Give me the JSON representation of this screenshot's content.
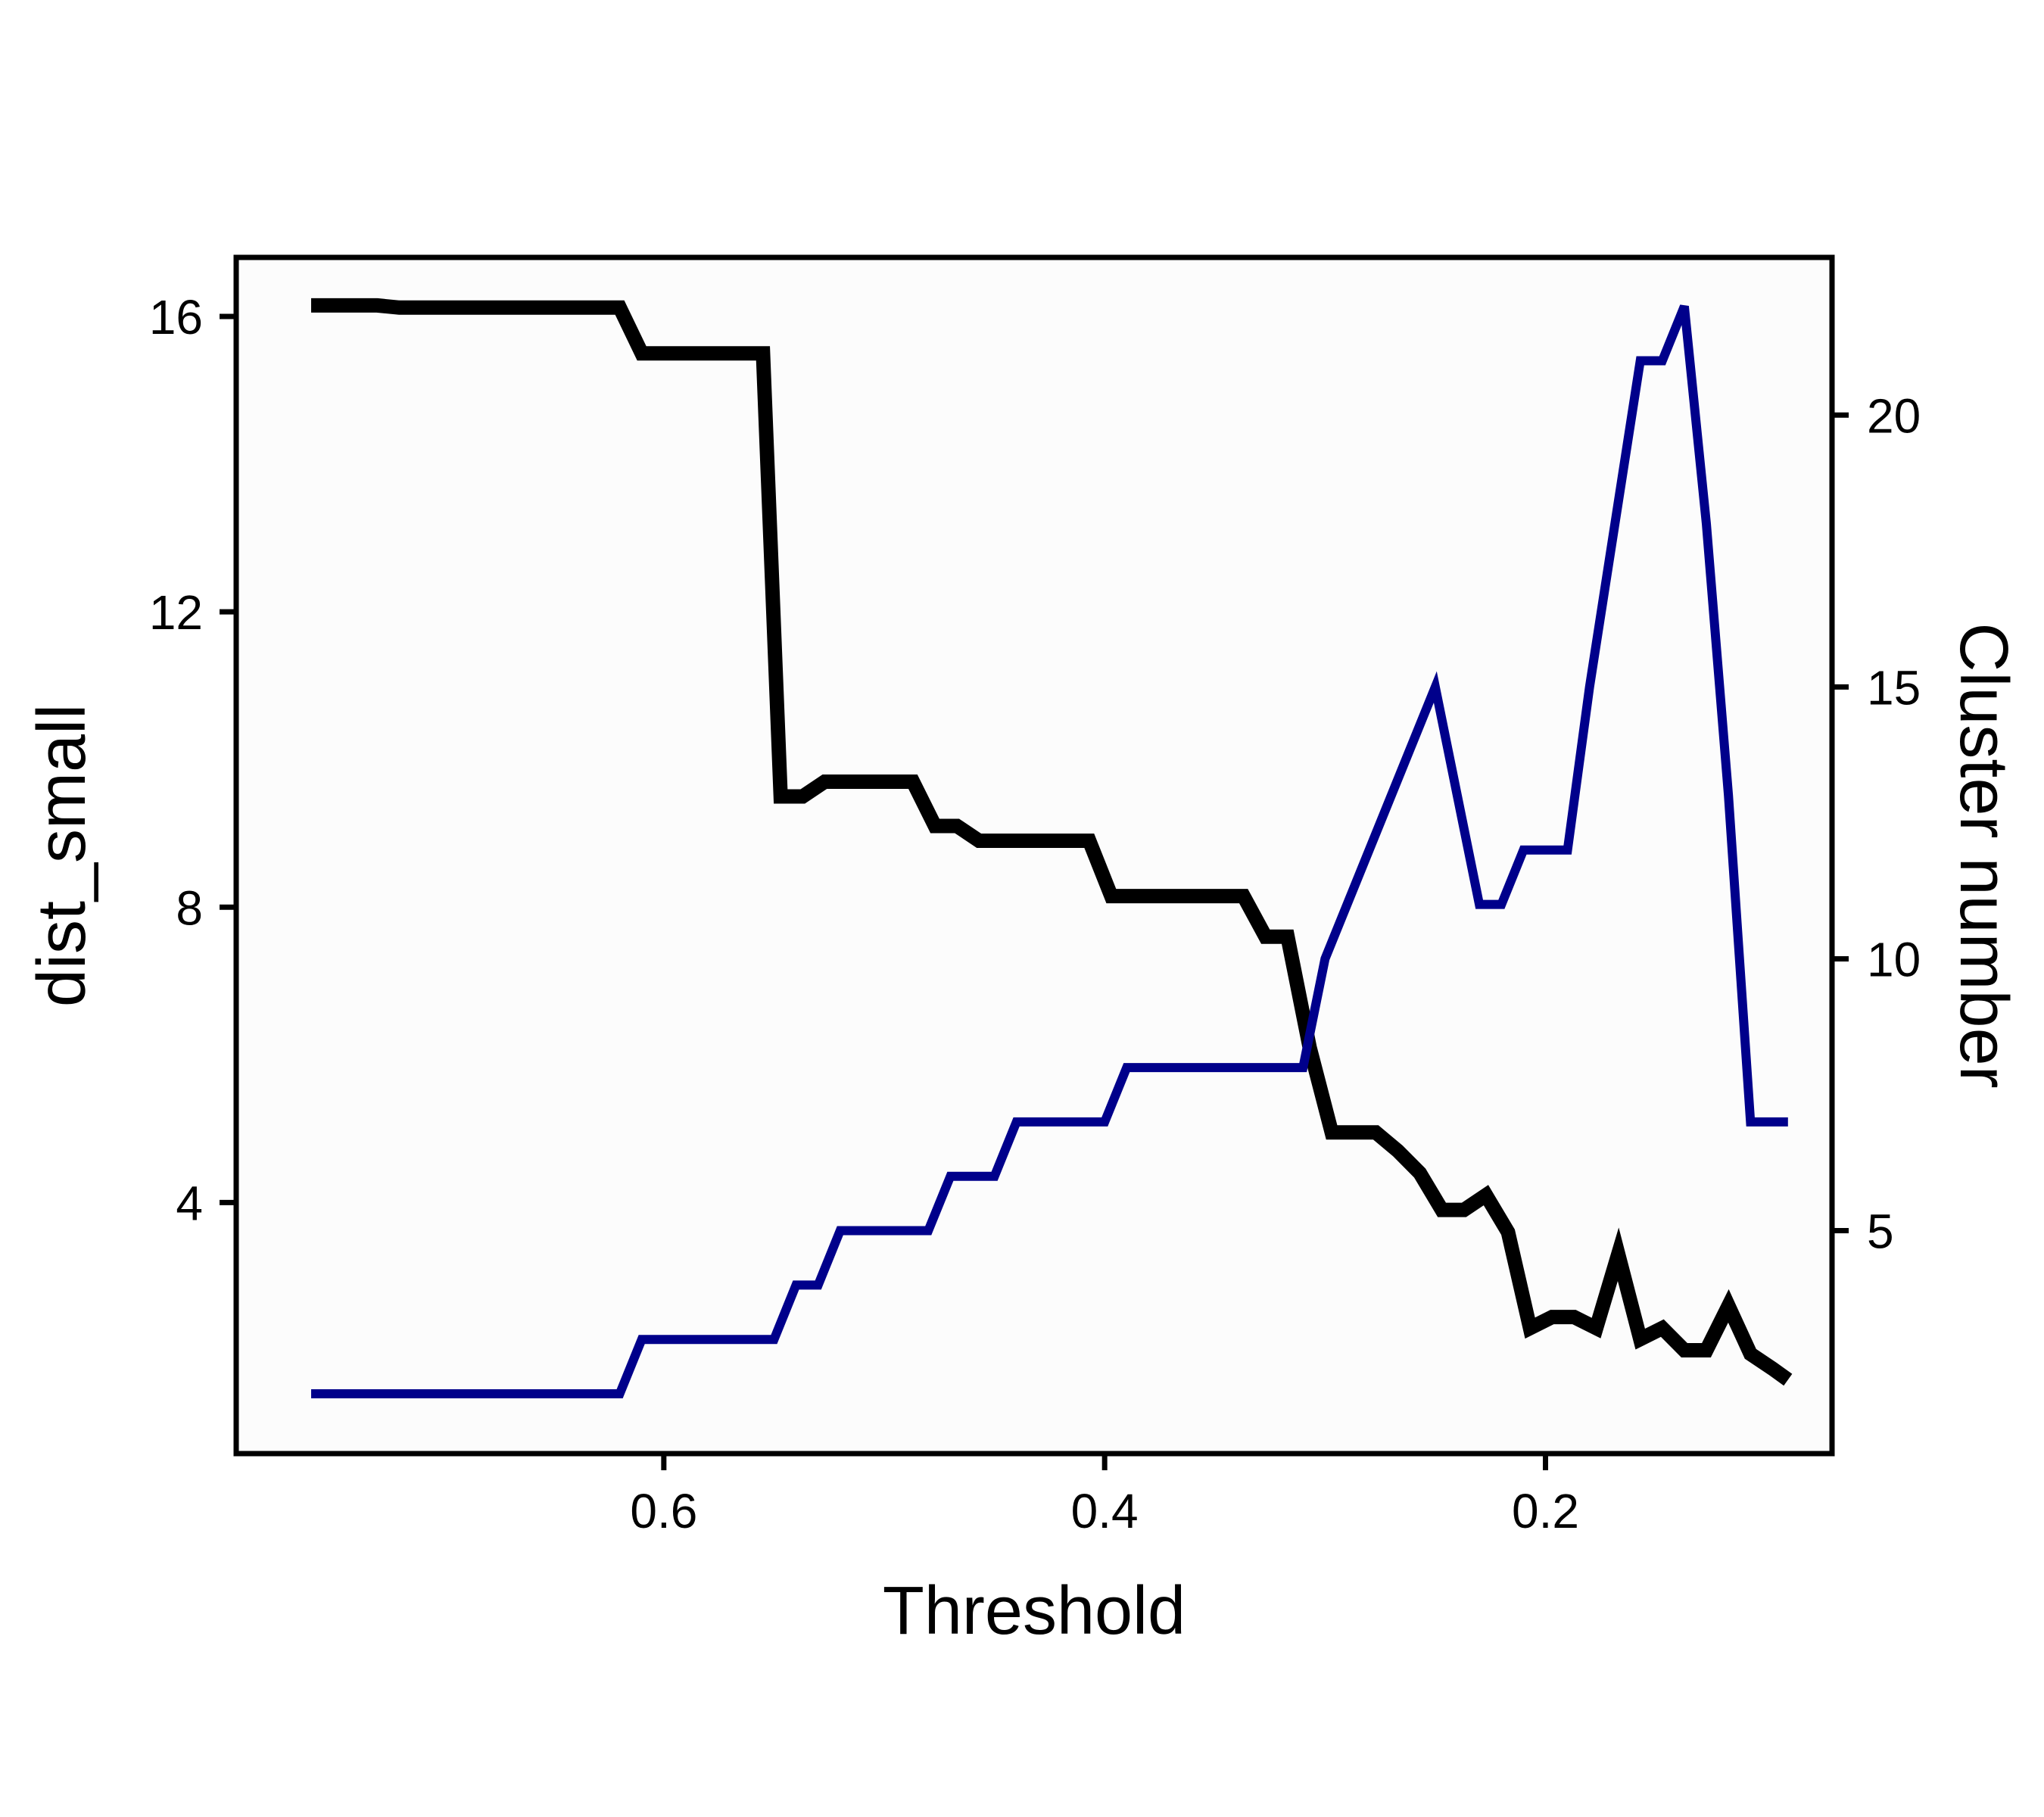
{
  "chart_data": {
    "type": "line",
    "xlabel": "Threshold",
    "ylabel_left": "dist_small",
    "ylabel_right": "Cluster number",
    "x_reversed": true,
    "xlim": [
      0.794,
      0.07
    ],
    "x_ticks": [
      0.6,
      0.4,
      0.2
    ],
    "x_tick_labels": [
      "0.6",
      "0.4",
      "0.2"
    ],
    "ylim_left": [
      0.6,
      16.8
    ],
    "y_left_ticks": [
      4,
      8,
      12,
      16
    ],
    "y_left_tick_labels": [
      "4",
      "8",
      "12",
      "16"
    ],
    "ylim_right": [
      0.9,
      22.9
    ],
    "y_right_ticks": [
      5,
      10,
      15,
      20
    ],
    "y_right_tick_labels": [
      "5",
      "10",
      "15",
      "20"
    ],
    "grid": false,
    "plot_background": "#fcfcfc",
    "series": [
      {
        "name": "dist_small",
        "axis": "left",
        "color": "#000000",
        "x": [
          0.76,
          0.73,
          0.72,
          0.62,
          0.61,
          0.55,
          0.54,
          0.53,
          0.52,
          0.49,
          0.48,
          0.47,
          0.46,
          0.45,
          0.44,
          0.43,
          0.42,
          0.41,
          0.4,
          0.39,
          0.38,
          0.33,
          0.32,
          0.31,
          0.3,
          0.29,
          0.28,
          0.27,
          0.26,
          0.25,
          0.24,
          0.23,
          0.22,
          0.21,
          0.2,
          0.19,
          0.18,
          0.17,
          0.16,
          0.15,
          0.14,
          0.13,
          0.12,
          0.11,
          0.1,
          0.09
        ],
        "y": [
          16.15,
          16.15,
          16.12,
          16.12,
          15.5,
          15.5,
          9.5,
          9.5,
          9.7,
          9.7,
          9.1,
          9.1,
          8.9,
          8.9,
          8.9,
          8.9,
          8.9,
          8.15,
          8.15,
          8.15,
          8.15,
          7.6,
          7.6,
          6.1,
          6.1,
          4.95,
          4.95,
          4.7,
          4.4,
          3.9,
          3.9,
          4.1,
          3.6,
          2.3,
          2.45,
          2.45,
          2.3,
          3.3,
          2.15,
          2.3,
          2.0,
          2.0,
          2.6,
          1.95,
          1.75,
          1.65
        ],
        "x_full": [
          0.76,
          0.73,
          0.72,
          0.62,
          0.61,
          0.555,
          0.547,
          0.537,
          0.527,
          0.497,
          0.487,
          0.477,
          0.467,
          0.457,
          0.447,
          0.437,
          0.427,
          0.407,
          0.397,
          0.387,
          0.337,
          0.327,
          0.317,
          0.307,
          0.297,
          0.287,
          0.277,
          0.267,
          0.257,
          0.247,
          0.237,
          0.227,
          0.217,
          0.207,
          0.197,
          0.187,
          0.177,
          0.167,
          0.157,
          0.147,
          0.137,
          0.127,
          0.117,
          0.107,
          0.097,
          0.09
        ],
        "y_full": [
          16.15,
          16.15,
          16.12,
          16.12,
          15.5,
          15.5,
          9.5,
          9.5,
          9.7,
          9.7,
          9.7,
          9.1,
          9.1,
          8.9,
          8.9,
          8.9,
          8.9,
          8.9,
          8.15,
          8.15,
          8.15,
          7.6,
          7.6,
          6.1,
          4.95,
          4.95,
          4.95,
          4.7,
          4.4,
          3.9,
          3.9,
          4.1,
          3.6,
          2.3,
          2.45,
          2.45,
          2.3,
          3.3,
          2.15,
          2.3,
          2.0,
          2.0,
          2.6,
          1.95,
          1.75,
          1.6
        ]
      },
      {
        "name": "Cluster number",
        "axis": "right",
        "color": "#00008b",
        "x": [
          0.76,
          0.62,
          0.61,
          0.55,
          0.54,
          0.53,
          0.52,
          0.48,
          0.47,
          0.45,
          0.44,
          0.4,
          0.39,
          0.31,
          0.3,
          0.25,
          0.24,
          0.23,
          0.22,
          0.21,
          0.2,
          0.19,
          0.18,
          0.15,
          0.14,
          0.13,
          0.12,
          0.11,
          0.1,
          0.09
        ],
        "y": [
          2,
          2,
          3,
          3,
          4,
          4,
          5,
          5,
          6,
          6,
          7,
          7,
          8,
          8,
          10,
          15,
          13,
          11,
          11,
          12,
          12,
          15,
          15,
          21,
          21,
          22,
          18,
          13,
          7,
          7
        ],
        "x_full": [
          0.76,
          0.62,
          0.61,
          0.55,
          0.54,
          0.53,
          0.52,
          0.48,
          0.47,
          0.45,
          0.44,
          0.4,
          0.39,
          0.31,
          0.3,
          0.25,
          0.24,
          0.23,
          0.22,
          0.21,
          0.2,
          0.19,
          0.18,
          0.157,
          0.147,
          0.137,
          0.127,
          0.117,
          0.107,
          0.097,
          0.09
        ],
        "y_full": [
          2,
          2,
          3,
          3,
          4,
          4,
          5,
          5,
          6,
          6,
          7,
          7,
          8,
          8,
          10,
          15,
          13,
          11,
          11,
          12,
          12,
          12,
          15,
          21,
          21,
          22,
          18,
          13,
          7,
          7,
          7
        ]
      }
    ]
  }
}
